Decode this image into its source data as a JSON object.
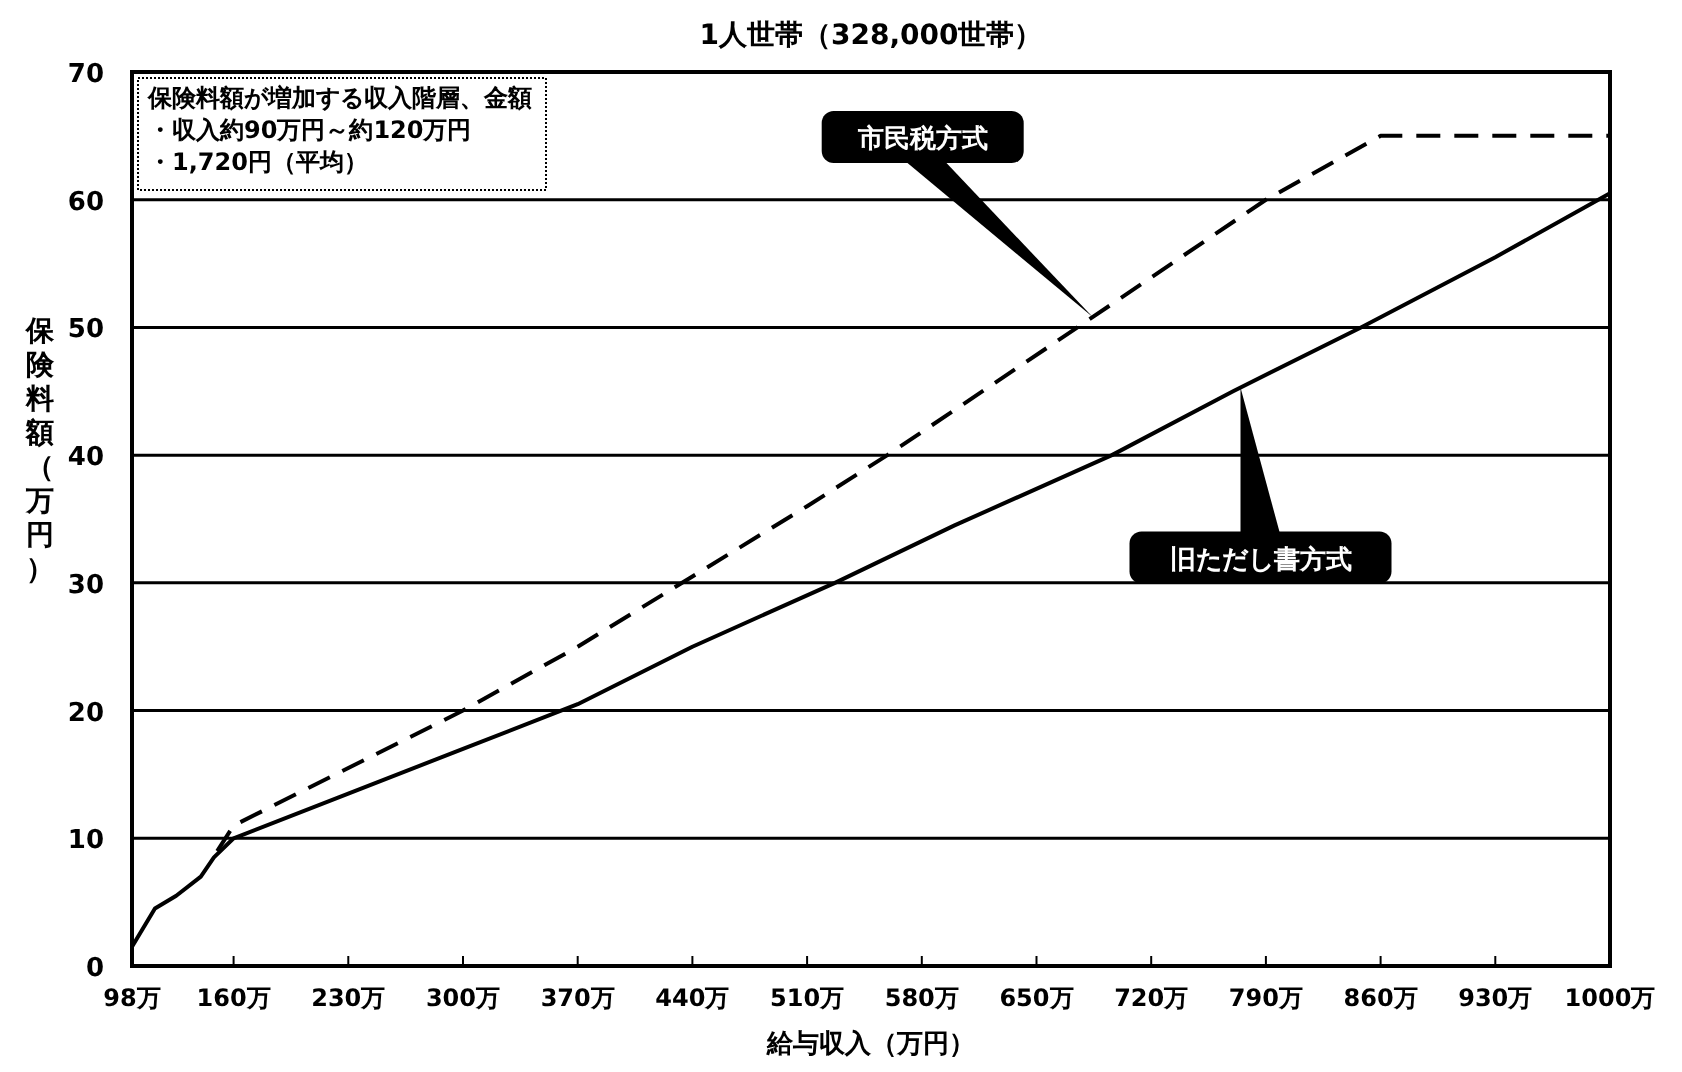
{
  "chart_data": {
    "type": "line",
    "title": "1人世帯（328,000世帯）",
    "xlabel": "給与収入（万円）",
    "ylabel": "保険料額（万円）",
    "annotations": [
      "保険料額が増加する収入階層、金額",
      "・収入約90万円～約120万円",
      "・1,720円（平均）"
    ],
    "series": [
      {
        "name": "市民税方式",
        "color": "#000000",
        "line_style": "dashed",
        "x": [
          150,
          160,
          230,
          300,
          370,
          440,
          510,
          559,
          675,
          790,
          860,
          1000
        ],
        "values": [
          9,
          11,
          15.5,
          20,
          25,
          30.5,
          36,
          40,
          50,
          60,
          65,
          65
        ]
      },
      {
        "name": "旧ただし書方式",
        "color": "#000000",
        "line_style": "solid",
        "x": [
          98,
          112,
          125,
          140,
          148,
          160,
          230,
          300,
          370,
          440,
          527,
          600,
          696,
          770,
          848,
          930,
          1000
        ],
        "values": [
          1.5,
          4.5,
          5.5,
          7,
          8.5,
          10,
          13.5,
          17,
          20.5,
          25,
          30,
          34.5,
          40,
          45,
          50,
          55.5,
          60.5
        ]
      }
    ],
    "xlim": [
      98,
      1000
    ],
    "ylim": [
      0,
      70
    ],
    "xticks": [
      {
        "value": 98,
        "label": "98万"
      },
      {
        "value": 160,
        "label": "160万"
      },
      {
        "value": 230,
        "label": "230万"
      },
      {
        "value": 300,
        "label": "300万"
      },
      {
        "value": 370,
        "label": "370万"
      },
      {
        "value": 440,
        "label": "440万"
      },
      {
        "value": 510,
        "label": "510万"
      },
      {
        "value": 580,
        "label": "580万"
      },
      {
        "value": 650,
        "label": "650万"
      },
      {
        "value": 720,
        "label": "720万"
      },
      {
        "value": 790,
        "label": "790万"
      },
      {
        "value": 860,
        "label": "860万"
      },
      {
        "value": 930,
        "label": "930万"
      },
      {
        "value": 1000,
        "label": "1000万"
      }
    ],
    "yticks": [
      0,
      10,
      20,
      30,
      40,
      50,
      60,
      70
    ],
    "grid": "y"
  }
}
